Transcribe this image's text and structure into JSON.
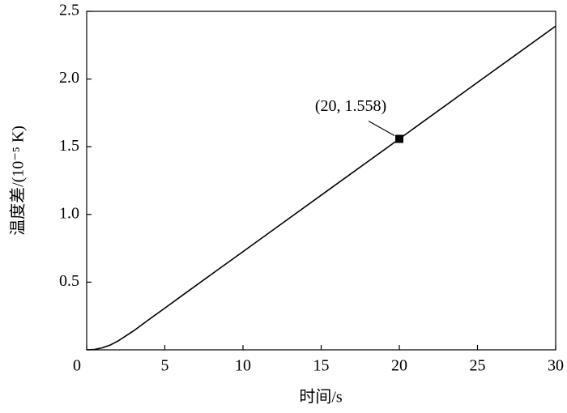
{
  "chart_data": {
    "type": "line",
    "x_label": "时间/s",
    "y_label": "温度差/(10⁻⁵ K)",
    "x": [
      0,
      0.5,
      1,
      1.5,
      2,
      3,
      4,
      5,
      6,
      8,
      10,
      12,
      15,
      20,
      25,
      30
    ],
    "series": [
      {
        "color": "#000000",
        "values": [
          0,
          0.003,
          0.015,
          0.035,
          0.065,
          0.14,
          0.225,
          0.308,
          0.392,
          0.559,
          0.725,
          0.892,
          1.142,
          1.558,
          1.975,
          2.391
        ]
      }
    ],
    "highlight": {
      "x": 20,
      "y": 1.558,
      "label": "(20, 1.558)"
    },
    "xlim": [
      0,
      30
    ],
    "xticks": [
      0,
      5,
      10,
      15,
      20,
      25,
      30
    ],
    "ylim": [
      0,
      2.5
    ],
    "yticks": [
      0.5,
      {
        "value": 1,
        "label": "1.0"
      },
      1.5,
      {
        "value": 2,
        "label": "2.0"
      },
      2.5
    ]
  }
}
